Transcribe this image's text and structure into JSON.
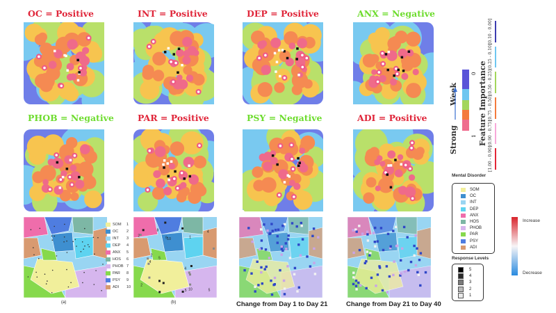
{
  "chart_data": {
    "type": "heatmap",
    "title": "",
    "panels": [
      {
        "id": "oc",
        "label": "OC = Positive",
        "sign": "positive"
      },
      {
        "id": "int",
        "label": "INT = Positive",
        "sign": "positive"
      },
      {
        "id": "dep",
        "label": "DEP = Positive",
        "sign": "positive"
      },
      {
        "id": "anx",
        "label": "ANX = Negative",
        "sign": "negative"
      },
      {
        "id": "phob",
        "label": "PHOB = Negative",
        "sign": "negative"
      },
      {
        "id": "par",
        "label": "PAR = Positive",
        "sign": "positive"
      },
      {
        "id": "psy",
        "label": "PSY = Negative",
        "sign": "negative"
      },
      {
        "id": "adi",
        "label": "ADI = Positive",
        "sign": "positive"
      }
    ],
    "strength_scale": {
      "strong_label": "Strong",
      "weak_label": "Week",
      "low_tick": "0",
      "high_tick": "1"
    },
    "feature_importance": {
      "title": "Feature Importance",
      "bins": [
        {
          "label": "[1.00 - 0.90]",
          "color": "#e32636"
        },
        {
          "label": "(0.90 - 0.75]",
          "color": "#f7a8d8"
        },
        {
          "label": "(0.75 - 0.50]",
          "color": "#f47a3c"
        },
        {
          "label": "(0.50 - 0.25]",
          "color": "#a3d65b"
        },
        {
          "label": "(0.25 - 0.10]",
          "color": "#6ec6f0"
        },
        {
          "label": "(0.10 - 0.00]",
          "color": "#3d3db0"
        }
      ]
    },
    "mental_disorder": {
      "title": "Mental Disorder",
      "items": [
        {
          "code": "SOM",
          "num": "1",
          "color": "#f1ef9b"
        },
        {
          "code": "OC",
          "num": "2",
          "color": "#3e8fd0"
        },
        {
          "code": "INT",
          "num": "3",
          "color": "#99d5f2"
        },
        {
          "code": "DEP",
          "num": "4",
          "color": "#5ed3f0"
        },
        {
          "code": "ANX",
          "num": "5",
          "color": "#ef6dab"
        },
        {
          "code": "HOS",
          "num": "6",
          "color": "#7db7a5"
        },
        {
          "code": "PHOB",
          "num": "7",
          "color": "#d6b6ee"
        },
        {
          "code": "PAR",
          "num": "8",
          "color": "#86d94c"
        },
        {
          "code": "PSY",
          "num": "9",
          "color": "#4f7de0"
        },
        {
          "code": "ADI",
          "num": "10",
          "color": "#d89a70"
        }
      ]
    },
    "response_levels": {
      "title": "Response Levels",
      "items": [
        {
          "level": "5",
          "color": "#000000"
        },
        {
          "level": "4",
          "color": "#2b2b2b"
        },
        {
          "level": "3",
          "color": "#7a7a7a"
        },
        {
          "level": "2",
          "color": "#b9b9b9"
        },
        {
          "level": "1",
          "color": "#e8e8e8"
        }
      ]
    },
    "change_scale": {
      "high_label": "Increase",
      "low_label": "Decrease",
      "high_color": "#d9242c",
      "low_color": "#2a8be0"
    },
    "bottom_captions": [
      "(a)",
      "(b)",
      "Change from Day 1 to Day 21",
      "Change from Day 21 to Day 40"
    ]
  }
}
